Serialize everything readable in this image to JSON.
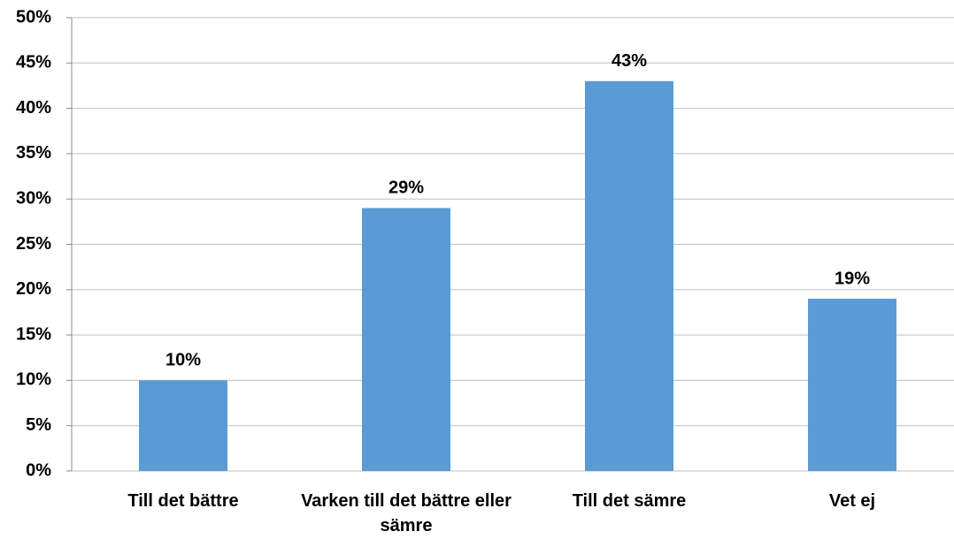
{
  "chart_data": {
    "type": "bar",
    "categories": [
      "Till det bättre",
      "Varken till det bättre eller sämre",
      "Till det sämre",
      "Vet ej"
    ],
    "values": [
      10,
      29,
      43,
      19
    ],
    "value_labels": [
      "10%",
      "29%",
      "43%",
      "19%"
    ],
    "color": "#5b9bd5",
    "ylim": [
      0,
      50
    ],
    "yticks": [
      {
        "value": 0,
        "label": "0%"
      },
      {
        "value": 5,
        "label": "5%"
      },
      {
        "value": 10,
        "label": "10%"
      },
      {
        "value": 15,
        "label": "15%"
      },
      {
        "value": 20,
        "label": "20%"
      },
      {
        "value": 25,
        "label": "25%"
      },
      {
        "value": 30,
        "label": "30%"
      },
      {
        "value": 35,
        "label": "35%"
      },
      {
        "value": 40,
        "label": "40%"
      },
      {
        "value": 45,
        "label": "45%"
      },
      {
        "value": 50,
        "label": "50%"
      }
    ],
    "grid": true
  }
}
